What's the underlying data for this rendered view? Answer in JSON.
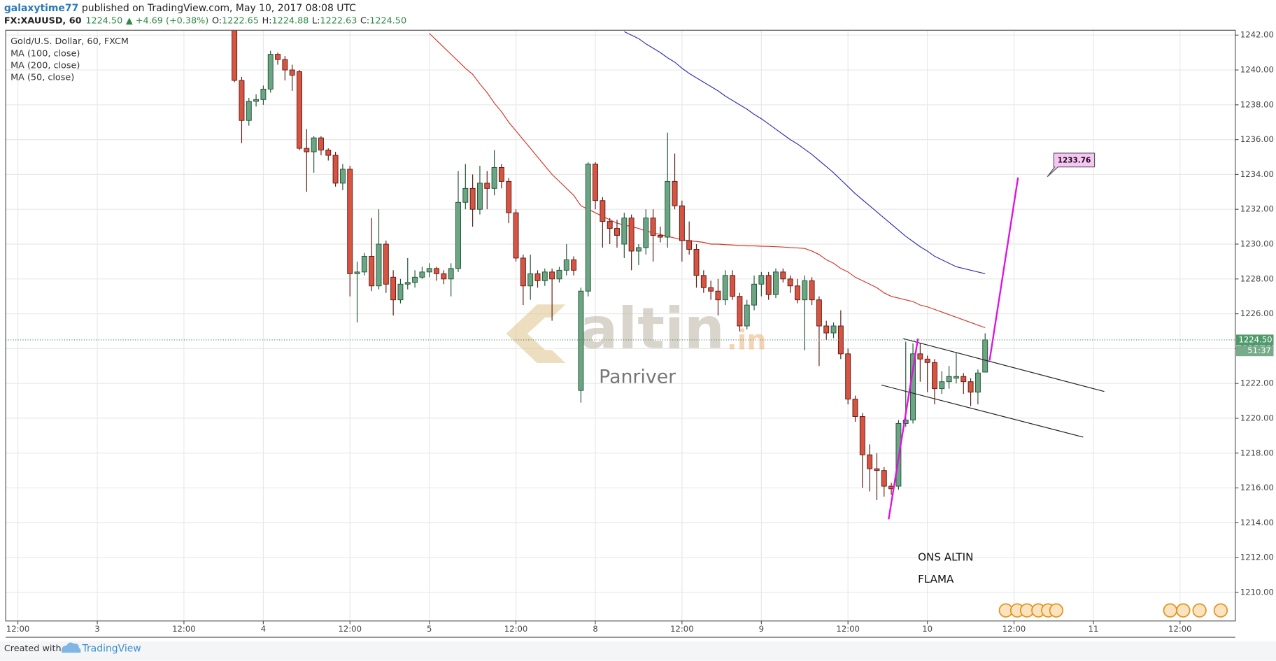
{
  "header": {
    "author": "galaxytime77",
    "published": "published on TradingView.com, May 10, 2017 08:08 UTC",
    "symbol": "FX:XAUUSD, 60",
    "price": "1224.50",
    "change": "▲ +4.69 (+0.38%)",
    "ohlc": [
      [
        "O:",
        "1222.65"
      ],
      [
        "H:",
        "1224.88"
      ],
      [
        "L:",
        "1222.63"
      ],
      [
        "C:",
        "1224.50"
      ]
    ]
  },
  "chart_data": {
    "type": "candlestick",
    "title": "Gold/U.S. Dollar, 60, FXCM",
    "up_color": "#6ba583",
    "down_color": "#d75442",
    "categories": [
      "12:00",
      null,
      null,
      null,
      null,
      null,
      null,
      null,
      null,
      null,
      null,
      "3",
      null,
      null,
      null,
      null,
      null,
      null,
      null,
      null,
      null,
      null,
      null,
      "12:00",
      null,
      null,
      null,
      null,
      null,
      null,
      null,
      null,
      null,
      null,
      "4",
      null,
      null,
      null,
      null,
      null,
      null,
      null,
      null,
      null,
      null,
      null,
      "12:00",
      null,
      null,
      null,
      null,
      null,
      null,
      null,
      null,
      null,
      null,
      "5",
      null,
      null,
      null,
      null,
      null,
      null,
      null,
      null,
      null,
      null,
      null,
      "12:00",
      null,
      null,
      null,
      null,
      null,
      null,
      null,
      null,
      null,
      null,
      "8",
      null,
      null,
      null,
      null,
      null,
      null,
      null,
      null,
      null,
      null,
      null,
      "12:00",
      null,
      null,
      null,
      null,
      null,
      null,
      null,
      null,
      null,
      null,
      "9",
      null,
      null,
      null,
      null,
      null,
      null,
      null,
      null,
      null,
      null,
      null,
      "12:00",
      null,
      null,
      null,
      null,
      null,
      null,
      null,
      null,
      null,
      null,
      "10",
      null,
      null,
      null,
      null,
      null,
      null,
      null,
      null,
      null,
      null,
      null,
      "12:00",
      null,
      null,
      null,
      null,
      null,
      null,
      null,
      null,
      null,
      null,
      "11",
      null,
      null,
      null,
      null,
      null,
      null,
      null,
      null,
      null,
      null,
      null,
      "12:00",
      null,
      null,
      null,
      null,
      null,
      null,
      null
    ],
    "open": [
      null,
      null,
      null,
      null,
      null,
      null,
      null,
      null,
      null,
      null,
      null,
      null,
      null,
      null,
      null,
      null,
      null,
      null,
      null,
      null,
      null,
      null,
      null,
      null,
      null,
      null,
      null,
      null,
      null,
      null,
      1243.5,
      1239.4,
      1237.1,
      1238.2,
      1238.3,
      1238.9,
      1240.9,
      1240.6,
      1240.0,
      1239.9,
      1235.5,
      1235.3,
      1236.1,
      1235.4,
      1235.1,
      1233.5,
      1234.3,
      1228.3,
      1228.4,
      1229.3,
      1227.6,
      1230.0,
      1228.1,
      1226.8,
      1227.7,
      1227.8,
      1228.1,
      1228.4,
      1228.6,
      1228.3,
      1228.0,
      1228.6,
      1232.4,
      1233.2,
      1232.0,
      1233.5,
      1233.2,
      1234.4,
      1233.6,
      1231.8,
      1229.2,
      1227.6,
      1228.3,
      1227.9,
      1228.4,
      1228.0,
      1228.5,
      1229.1,
      1221.6,
      1227.3,
      1234.6,
      1232.5,
      1231.3,
      1230.9,
      1230.0,
      1231.5,
      1229.6,
      1229.8,
      1231.5,
      1230.5,
      1230.4,
      1233.6,
      1232.2,
      1230.2,
      1229.7,
      1228.2,
      1227.5,
      1227.3,
      1226.8,
      1228.2,
      1227.0,
      1225.3,
      1226.5,
      1227.7,
      1228.2,
      1227.1,
      1228.4,
      1228.0,
      1227.6,
      1226.8,
      1227.9,
      1226.8,
      1225.3,
      1224.9,
      1225.3,
      1223.7,
      1221.1,
      1220.1,
      1217.9,
      1217.1,
      1217.0,
      1216.1,
      1216.1,
      1219.7,
      1219.9,
      1223.7,
      1223.4,
      1223.2,
      1221.7,
      1222.1,
      1222.3,
      1222.4,
      1222.1,
      1221.5,
      1222.65,
      null,
      null,
      null,
      null,
      null,
      null,
      null,
      null,
      null,
      null,
      null,
      null,
      null,
      null,
      null,
      null,
      null,
      null,
      null,
      null,
      null,
      null,
      null,
      null,
      null,
      null,
      null,
      null,
      null,
      null,
      null,
      null,
      null,
      null
    ],
    "high": [
      null,
      null,
      null,
      null,
      null,
      null,
      null,
      null,
      null,
      null,
      null,
      null,
      null,
      null,
      null,
      null,
      null,
      null,
      null,
      null,
      null,
      null,
      null,
      null,
      null,
      null,
      null,
      null,
      null,
      null,
      1244,
      1239.6,
      1238.4,
      1238.6,
      1239.1,
      1241.1,
      1241.0,
      1240.8,
      1240.3,
      1240.0,
      1236.6,
      1236.2,
      1236.2,
      1235.5,
      1235.3,
      1234.6,
      1234.5,
      1229.0,
      1229.5,
      1231.5,
      1232.0,
      1230.2,
      1228.5,
      1228.0,
      1229.2,
      1228.5,
      1228.7,
      1228.9,
      1228.7,
      1228.5,
      1228.9,
      1234.2,
      1234.6,
      1234.0,
      1234.5,
      1234.2,
      1235.4,
      1234.6,
      1233.8,
      1232.0,
      1229.4,
      1229.4,
      1228.5,
      1228.6,
      1228.6,
      1228.7,
      1230.0,
      1229.3,
      1227.5,
      1234.7,
      1234.7,
      1232.7,
      1231.5,
      1231.4,
      1231.8,
      1231.7,
      1230.0,
      1232.0,
      1232.0,
      1231.0,
      1236.4,
      1235.2,
      1232.5,
      1231.3,
      1230.0,
      1228.5,
      1227.9,
      1228.0,
      1228.5,
      1228.5,
      1227.2,
      1226.8,
      1228.2,
      1228.4,
      1228.4,
      1228.6,
      1228.6,
      1228.2,
      1228.0,
      1228.2,
      1228.1,
      1227.0,
      1225.6,
      1225.5,
      1226.2,
      1224.0,
      1221.3,
      1220.3,
      1218.5,
      1218.0,
      1217.2,
      1216.3,
      1219.9,
      1224.4,
      1224.3,
      1224.3,
      1223.6,
      1223.4,
      1222.7,
      1223.0,
      1223.8,
      1222.6,
      1222.3,
      1222.8,
      1224.88,
      null,
      null,
      null,
      null,
      null,
      null,
      null,
      null,
      null,
      null,
      null,
      null,
      null,
      null,
      null,
      null,
      null,
      null,
      null,
      null,
      null,
      null,
      null,
      null,
      null,
      null,
      null,
      null,
      null,
      null,
      null,
      null,
      null,
      null
    ],
    "low": [
      null,
      null,
      null,
      null,
      null,
      null,
      null,
      null,
      null,
      null,
      null,
      null,
      null,
      null,
      null,
      null,
      null,
      null,
      null,
      null,
      null,
      null,
      null,
      null,
      null,
      null,
      null,
      null,
      null,
      null,
      1239.3,
      1235.8,
      1236.8,
      1237.9,
      1238.0,
      1238.7,
      1240.3,
      1239.4,
      1238.8,
      1235.4,
      1233.0,
      1234.1,
      1235.1,
      1234.8,
      1233.3,
      1233.1,
      1227.0,
      1225.5,
      1228.2,
      1227.3,
      1227.4,
      1227.2,
      1225.9,
      1226.6,
      1227.4,
      1227.5,
      1228.0,
      1228.1,
      1227.9,
      1227.7,
      1227.0,
      1228.4,
      1232.0,
      1231.0,
      1231.7,
      1232.0,
      1232.8,
      1233.2,
      1231.2,
      1229.0,
      1226.5,
      1226.8,
      1227.5,
      1227.6,
      1225.6,
      1227.8,
      1228.2,
      1228.2,
      1220.9,
      1227.0,
      1232.0,
      1229.8,
      1230.0,
      1229.8,
      1229.2,
      1228.5,
      1228.8,
      1229.4,
      1229.0,
      1230.1,
      1229.8,
      1232.0,
      1229.0,
      1229.4,
      1227.5,
      1227.2,
      1226.8,
      1225.9,
      1226.5,
      1226.8,
      1225.0,
      1225.1,
      1226.2,
      1227.0,
      1226.8,
      1226.9,
      1227.8,
      1227.2,
      1226.6,
      1223.9,
      1226.5,
      1223.0,
      1224.5,
      1224.6,
      1223.4,
      1220.8,
      1219.8,
      1216.0,
      1215.8,
      1215.3,
      1215.5,
      1215.6,
      1215.9,
      1219.5,
      1219.7,
      1222.1,
      1221.5,
      1220.8,
      1221.4,
      1221.7,
      1222.0,
      1221.4,
      1220.7,
      1220.8,
      1222.63,
      null,
      null,
      null,
      null,
      null,
      null,
      null,
      null,
      null,
      null,
      null,
      null,
      null,
      null,
      null,
      null,
      null,
      null,
      null,
      null,
      null,
      null,
      null,
      null,
      null,
      null,
      null,
      null,
      null,
      null,
      null,
      null,
      null,
      null
    ],
    "close": [
      null,
      null,
      null,
      null,
      null,
      null,
      null,
      null,
      null,
      null,
      null,
      null,
      null,
      null,
      null,
      null,
      null,
      null,
      null,
      null,
      null,
      null,
      null,
      null,
      null,
      null,
      null,
      null,
      null,
      null,
      1239.4,
      1237.1,
      1238.2,
      1238.3,
      1238.9,
      1240.9,
      1240.6,
      1240.0,
      1239.7,
      1235.5,
      1235.3,
      1236.1,
      1235.4,
      1235.1,
      1233.5,
      1234.3,
      1228.3,
      1228.4,
      1229.3,
      1227.6,
      1230.0,
      1227.7,
      1226.8,
      1227.7,
      1227.8,
      1228.1,
      1228.4,
      1228.6,
      1228.3,
      1228.0,
      1228.6,
      1232.4,
      1233.2,
      1232.0,
      1233.5,
      1233.2,
      1234.4,
      1233.6,
      1231.8,
      1229.2,
      1227.6,
      1228.3,
      1227.9,
      1228.4,
      1228.0,
      1228.5,
      1229.1,
      1228.5,
      1227.3,
      1234.6,
      1232.5,
      1231.3,
      1230.9,
      1230.5,
      1231.5,
      1229.6,
      1229.8,
      1231.5,
      1230.5,
      1230.4,
      1233.6,
      1232.2,
      1230.2,
      1229.7,
      1228.2,
      1227.5,
      1227.3,
      1226.8,
      1228.2,
      1227.0,
      1225.3,
      1226.5,
      1227.7,
      1228.2,
      1227.1,
      1228.4,
      1228.0,
      1227.6,
      1226.8,
      1227.9,
      1226.8,
      1225.3,
      1224.9,
      1225.3,
      1223.7,
      1221.1,
      1220.1,
      1217.9,
      1217.1,
      1217.0,
      1216.1,
      1215.95,
      1219.7,
      1219.9,
      1223.7,
      1223.4,
      1223.2,
      1221.7,
      1222.1,
      1222.4,
      1222.4,
      1222.1,
      1221.5,
      1222.6,
      1224.5,
      null,
      null,
      null,
      null,
      null,
      null,
      null,
      null,
      null,
      null,
      null,
      null,
      null,
      null,
      null,
      null,
      null,
      null,
      null,
      null,
      null,
      null,
      null,
      null,
      null,
      null,
      null,
      null,
      null,
      null,
      null,
      null,
      null,
      null
    ],
    "series": [
      {
        "name": "MA (100, close)",
        "color": "#d2362a",
        "values": [
          null,
          null,
          null,
          null,
          null,
          null,
          null,
          null,
          null,
          null,
          null,
          null,
          null,
          null,
          null,
          null,
          null,
          null,
          null,
          null,
          null,
          null,
          null,
          null,
          null,
          null,
          null,
          null,
          null,
          null,
          null,
          null,
          null,
          null,
          null,
          null,
          null,
          null,
          null,
          null,
          null,
          null,
          null,
          null,
          null,
          null,
          null,
          null,
          null,
          null,
          null,
          null,
          null,
          null,
          null,
          null,
          null,
          1242.1,
          1241.7,
          1241.3,
          1240.9,
          1240.5,
          1240.1,
          1239.75,
          1239.2,
          1238.7,
          1238.1,
          1237.6,
          1237.0,
          1236.5,
          1236.0,
          1235.5,
          1235.0,
          1234.5,
          1234.0,
          1233.6,
          1233.2,
          1232.8,
          1232.2,
          1232.0,
          1231.8,
          1231.6,
          1231.4,
          1231.2,
          1231.1,
          1231.0,
          1230.9,
          1230.75,
          1230.65,
          1230.55,
          1230.45,
          1230.35,
          1230.25,
          1230.2,
          1230.15,
          1230.1,
          1230.0,
          1230.0,
          1229.97,
          1229.95,
          1229.92,
          1229.9,
          1229.9,
          1229.88,
          1229.87,
          1229.85,
          1229.83,
          1229.8,
          1229.78,
          1229.75,
          1229.6,
          1229.4,
          1229.1,
          1228.9,
          1228.6,
          1228.4,
          1228.1,
          1227.9,
          1227.7,
          1227.5,
          1227.2,
          1227.0,
          1226.9,
          1226.8,
          1226.7,
          1226.5,
          1226.4,
          1226.25,
          1226.1,
          1225.95,
          1225.8,
          1225.65,
          1225.5,
          1225.35,
          1225.2,
          null,
          null,
          null,
          null,
          null,
          null,
          null,
          null,
          null,
          null,
          null,
          null,
          null,
          null,
          null,
          null,
          null,
          null,
          null,
          null,
          null,
          null,
          null,
          null,
          null,
          null,
          null,
          null,
          null,
          null,
          null,
          null,
          null,
          null
        ]
      },
      {
        "name": "MA (200, close)",
        "color": "#2f2fb0",
        "values": [
          null,
          null,
          null,
          null,
          null,
          null,
          null,
          null,
          null,
          null,
          null,
          null,
          null,
          null,
          null,
          null,
          null,
          null,
          null,
          null,
          null,
          null,
          null,
          null,
          null,
          null,
          null,
          null,
          null,
          null,
          null,
          null,
          null,
          null,
          null,
          null,
          null,
          null,
          null,
          null,
          null,
          null,
          null,
          null,
          null,
          null,
          null,
          null,
          null,
          null,
          null,
          null,
          null,
          null,
          null,
          null,
          null,
          null,
          null,
          null,
          null,
          null,
          null,
          null,
          null,
          null,
          null,
          null,
          null,
          null,
          null,
          null,
          null,
          null,
          null,
          null,
          null,
          null,
          null,
          null,
          null,
          null,
          null,
          null,
          1242.2,
          1242.0,
          1241.8,
          1241.5,
          1241.25,
          1241.0,
          1240.7,
          1240.45,
          1240.1,
          1239.8,
          1239.55,
          1239.3,
          1239.05,
          1238.8,
          1238.5,
          1238.25,
          1238.0,
          1237.75,
          1237.45,
          1237.2,
          1236.9,
          1236.6,
          1236.3,
          1236.0,
          1235.75,
          1235.45,
          1235.15,
          1234.8,
          1234.45,
          1234.1,
          1233.7,
          1233.3,
          1232.9,
          1232.55,
          1232.2,
          1231.85,
          1231.5,
          1231.15,
          1230.8,
          1230.45,
          1230.15,
          1229.85,
          1229.6,
          1229.3,
          1229.1,
          1228.9,
          1228.7,
          1228.6,
          1228.5,
          1228.4,
          1228.3,
          null,
          null,
          null,
          null,
          null,
          null,
          null,
          null,
          null,
          null,
          null,
          null,
          null,
          null,
          null,
          null,
          null,
          null,
          null,
          null,
          null,
          null,
          null,
          null,
          null,
          null,
          null,
          null,
          null,
          null,
          null,
          null,
          null,
          null
        ]
      },
      {
        "name": "MA (50, close)"
      }
    ],
    "ylim": [
      1208.36,
      1242.28
    ],
    "yticks": [
      {
        "value": 1210,
        "label": "1210.00"
      },
      {
        "value": 1212,
        "label": "1212.00"
      },
      {
        "value": 1214,
        "label": "1214.00"
      },
      {
        "value": 1216,
        "label": "1216.00"
      },
      {
        "value": 1218,
        "label": "1218.00"
      },
      {
        "value": 1220,
        "label": "1220.00"
      },
      {
        "value": 1222,
        "label": "1222.00"
      },
      {
        "value": 1224,
        "label": "1224.00"
      },
      {
        "value": 1226,
        "label": "1226.00"
      },
      {
        "value": 1228,
        "label": "1228.00"
      },
      {
        "value": 1230,
        "label": "1230.00"
      },
      {
        "value": 1232,
        "label": "1232.00"
      },
      {
        "value": 1234,
        "label": "1234.00"
      },
      {
        "value": 1236,
        "label": "1236.00"
      },
      {
        "value": 1238,
        "label": "1238.00"
      },
      {
        "value": 1240,
        "label": "1240.00"
      },
      {
        "value": 1242,
        "label": "1242.00"
      }
    ],
    "grid": true,
    "last_price": {
      "value": 1224.5,
      "label": "1224.50"
    },
    "countdown": "51:37",
    "annotations": {
      "callout": "1233.76",
      "line1": "ONS ALTIN",
      "line2": "FLAMA"
    },
    "watermark": {
      "name": "altin",
      "suffix": ".in",
      "sub": "Panriver"
    }
  },
  "footer": {
    "created": "Created with",
    "brand": "TradingView"
  }
}
